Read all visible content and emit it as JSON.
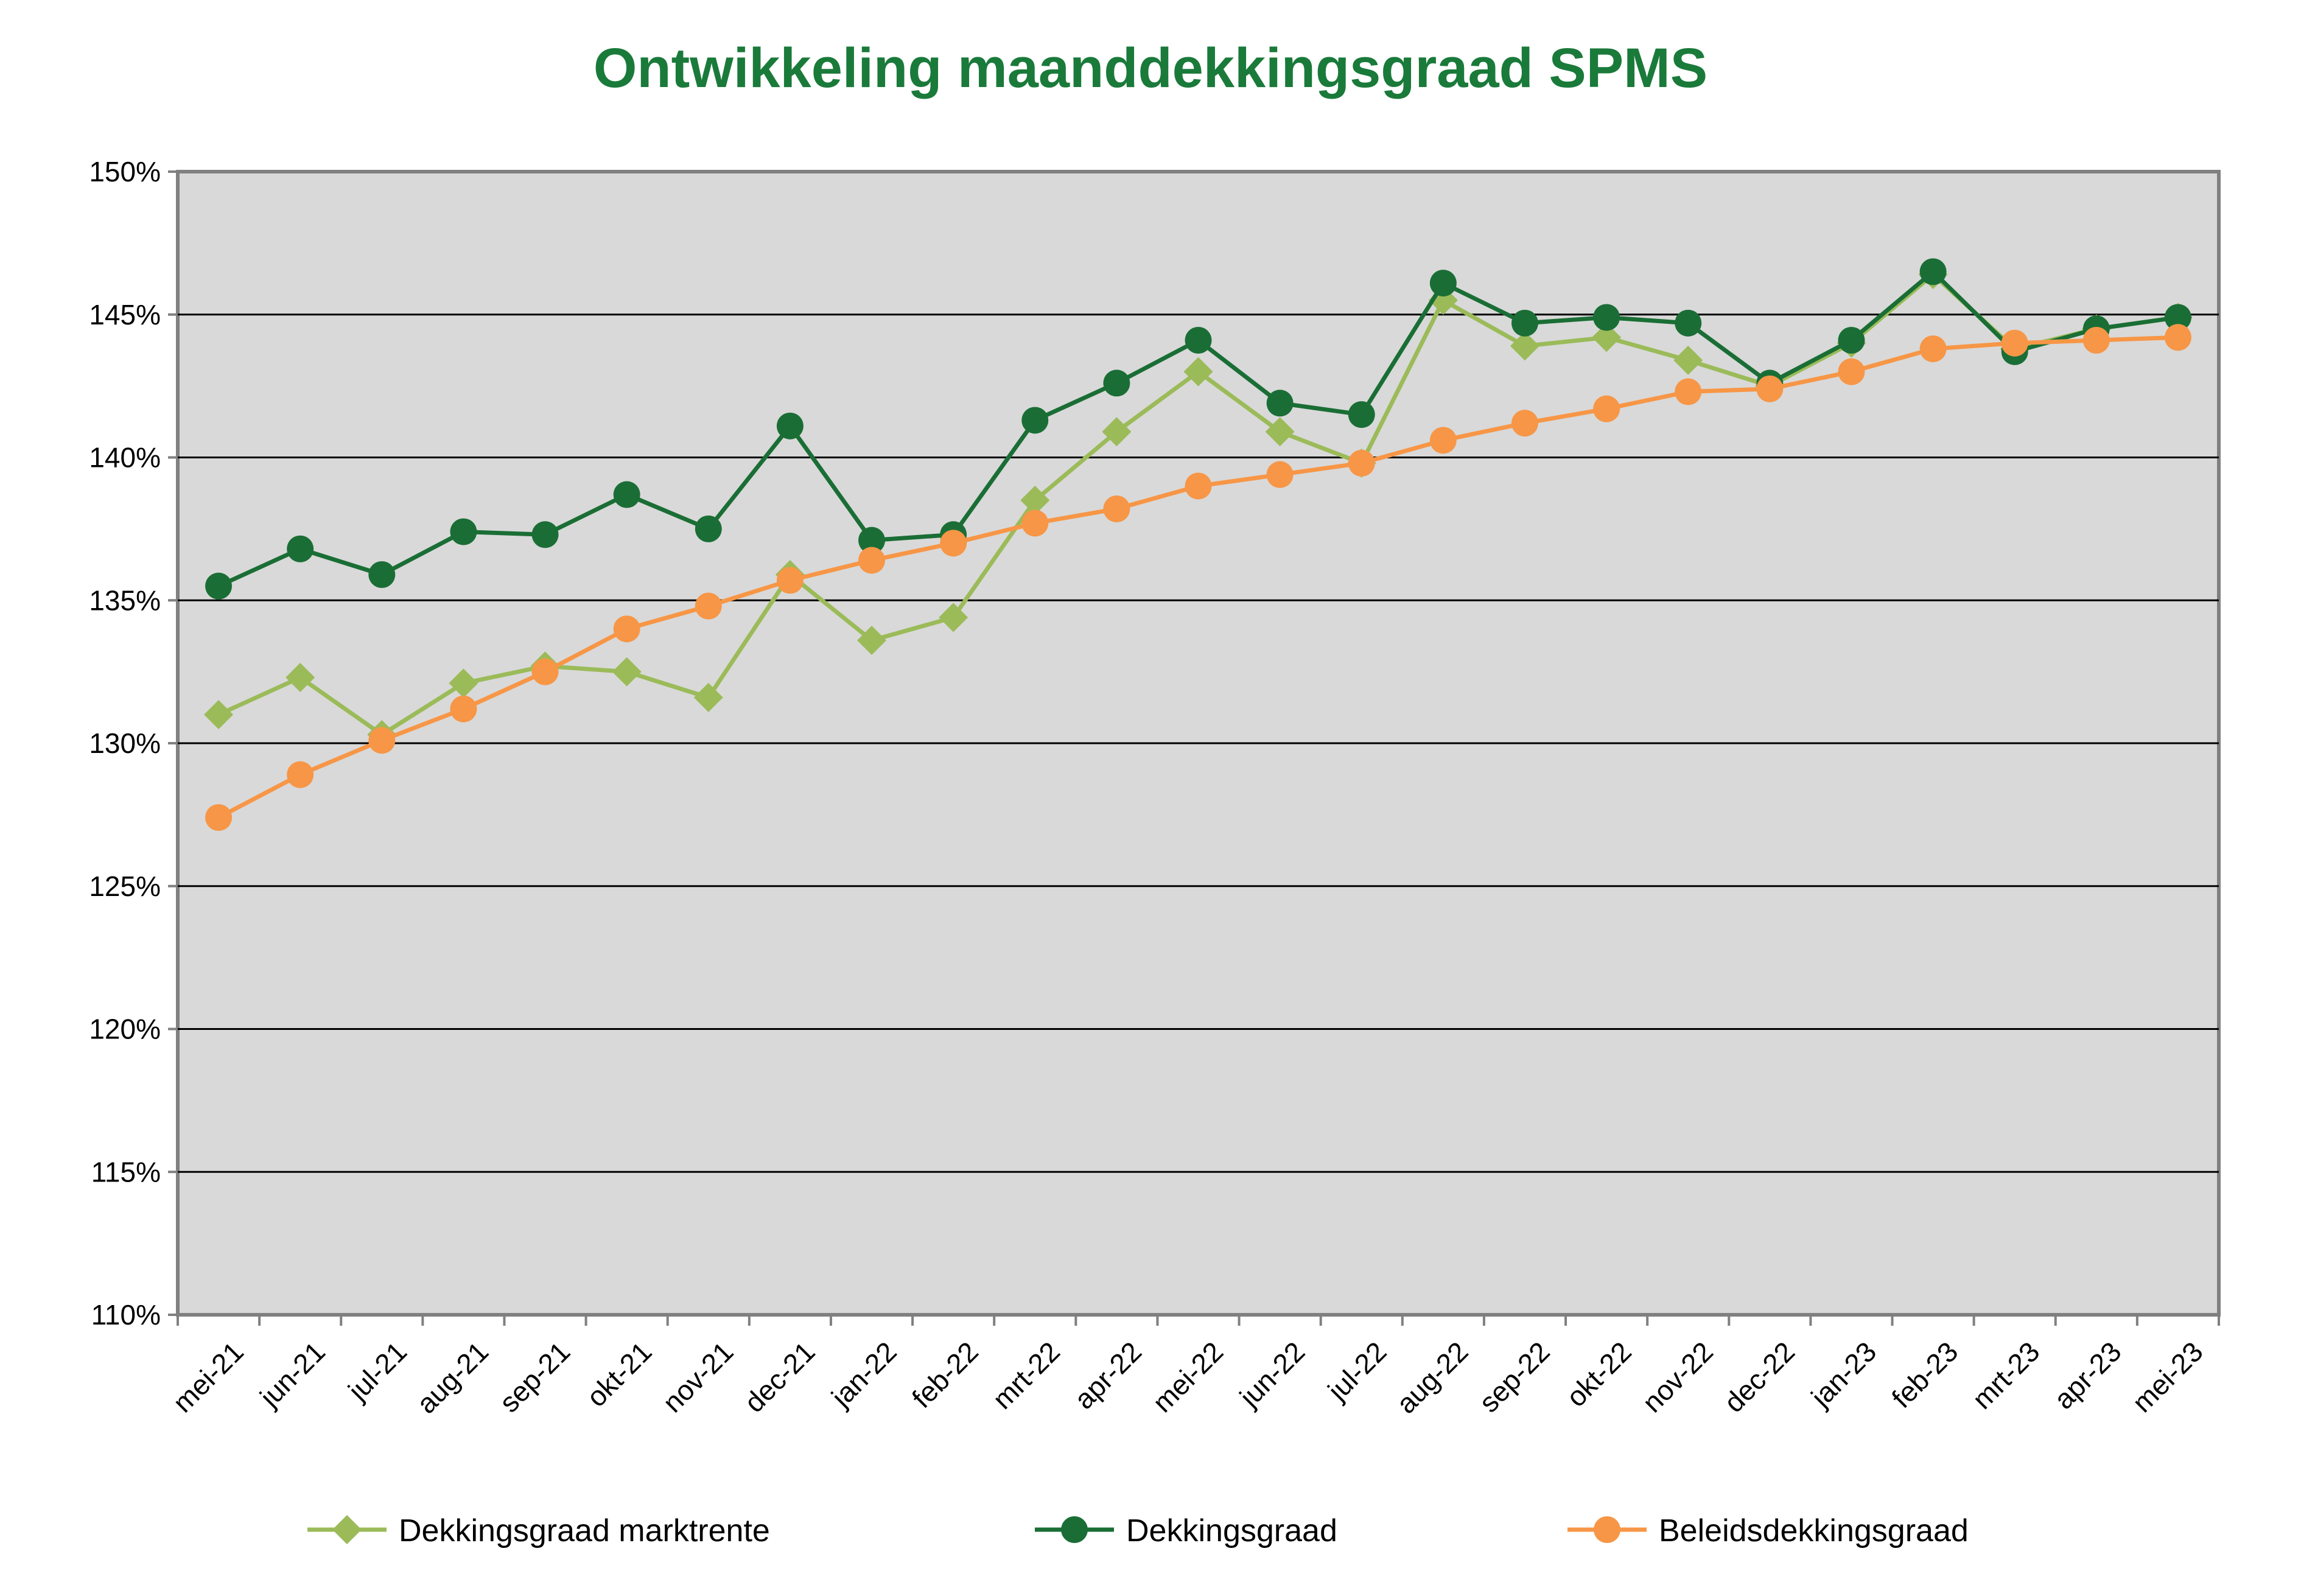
{
  "chart_data": {
    "type": "line",
    "title": "Ontwikkeling maanddekkingsgraad SPMS",
    "xlabel": "",
    "ylabel": "",
    "ylim": [
      110,
      150
    ],
    "yticks": [
      "110%",
      "115%",
      "120%",
      "125%",
      "130%",
      "135%",
      "140%",
      "145%",
      "150%"
    ],
    "grid": true,
    "legend_position": "bottom",
    "categories": [
      "mei-21",
      "jun-21",
      "jul-21",
      "aug-21",
      "sep-21",
      "okt-21",
      "nov-21",
      "dec-21",
      "jan-22",
      "feb-22",
      "mrt-22",
      "apr-22",
      "mei-22",
      "jun-22",
      "jul-22",
      "aug-22",
      "sep-22",
      "okt-22",
      "nov-22",
      "dec-22",
      "jan-23",
      "feb-23",
      "mrt-23",
      "apr-23",
      "mei-23"
    ],
    "series": [
      {
        "name": "Dekkingsgraad marktrente",
        "color": "#9bbb59",
        "marker": "diamond",
        "values": [
          131.0,
          132.3,
          130.3,
          132.1,
          132.7,
          132.5,
          131.6,
          135.9,
          133.6,
          134.4,
          138.5,
          140.9,
          143.0,
          140.9,
          139.8,
          145.5,
          143.9,
          144.2,
          143.4,
          142.5,
          144.0,
          146.4,
          143.8,
          144.5,
          144.9
        ]
      },
      {
        "name": "Dekkingsgraad",
        "color": "#1a6e35",
        "marker": "circle",
        "values": [
          135.5,
          136.8,
          135.9,
          137.4,
          137.3,
          138.7,
          137.5,
          141.1,
          137.1,
          137.3,
          141.3,
          142.6,
          144.1,
          141.9,
          141.5,
          146.1,
          144.7,
          144.9,
          144.7,
          142.6,
          144.1,
          146.5,
          143.7,
          144.5,
          144.9
        ]
      },
      {
        "name": "Beleidsdekkingsgraad",
        "color": "#f79646",
        "marker": "circle",
        "values": [
          127.4,
          128.9,
          130.1,
          131.2,
          132.5,
          134.0,
          134.8,
          135.7,
          136.4,
          137.0,
          137.7,
          138.2,
          139.0,
          139.4,
          139.8,
          140.6,
          141.2,
          141.7,
          142.3,
          142.4,
          143.0,
          143.8,
          144.0,
          144.1,
          144.2
        ]
      }
    ]
  }
}
